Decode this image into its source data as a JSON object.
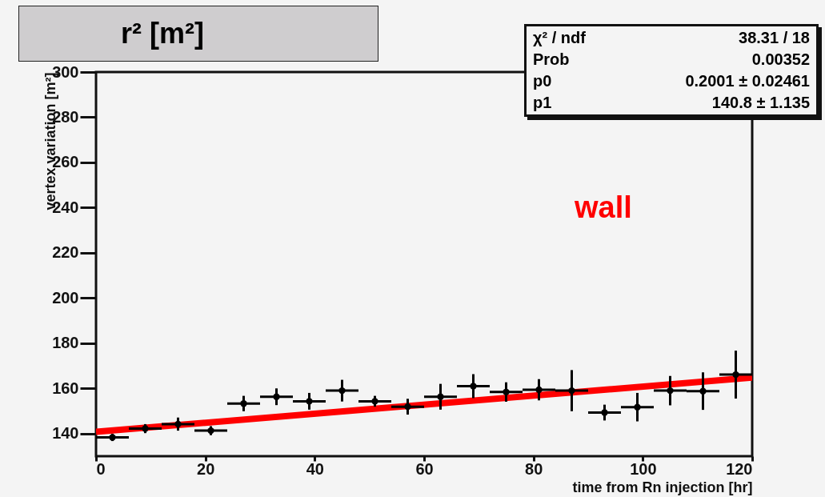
{
  "chart_data": {
    "type": "scatter",
    "title": "r² [m²]",
    "xlabel": "time from Rn injection [hr]",
    "ylabel": "vertex variation [m²]",
    "x": [
      3,
      9,
      15,
      21,
      27,
      33,
      39,
      45,
      51,
      57,
      63,
      69,
      75,
      81,
      87,
      93,
      99,
      105,
      111,
      117
    ],
    "series": [
      {
        "type": "scatter",
        "color": "#000000",
        "marker": "circle",
        "values": [
          138.3,
          142.2,
          144.2,
          141.3,
          153.3,
          156.3,
          154.3,
          159.0,
          154.3,
          151.9,
          156.3,
          161.0,
          158.4,
          159.4,
          159.0,
          149.3,
          151.7,
          159.0,
          158.8,
          166.1
        ],
        "errors": [
          1.6,
          2.0,
          2.9,
          2.0,
          3.4,
          3.7,
          3.7,
          4.8,
          2.4,
          3.5,
          5.7,
          5.3,
          4.3,
          4.7,
          9.1,
          3.5,
          6.3,
          6.5,
          8.3,
          10.6
        ],
        "xerrors": [
          3,
          3,
          3,
          3,
          3,
          3,
          3,
          3,
          3,
          3,
          3,
          3,
          3,
          3,
          3,
          3,
          3,
          3,
          3,
          3
        ]
      },
      {
        "type": "line",
        "color": "#ff0000",
        "x": [
          0,
          120
        ],
        "values": [
          140.8,
          164.8
        ]
      }
    ],
    "xlim": [
      0,
      120
    ],
    "xticks": [
      0,
      20,
      40,
      60,
      80,
      100,
      120
    ],
    "ylim": [
      130,
      300
    ],
    "yticks": [
      140,
      160,
      180,
      200,
      220,
      240,
      260,
      280,
      300
    ],
    "grid": false,
    "annotations": [
      "χ² / ndf",
      "38.31 / 18",
      "Prob",
      "0.00352",
      "p0",
      "0.2001 ± 0.02461",
      "p1",
      "140.8 ± 1.135",
      "wall"
    ]
  }
}
